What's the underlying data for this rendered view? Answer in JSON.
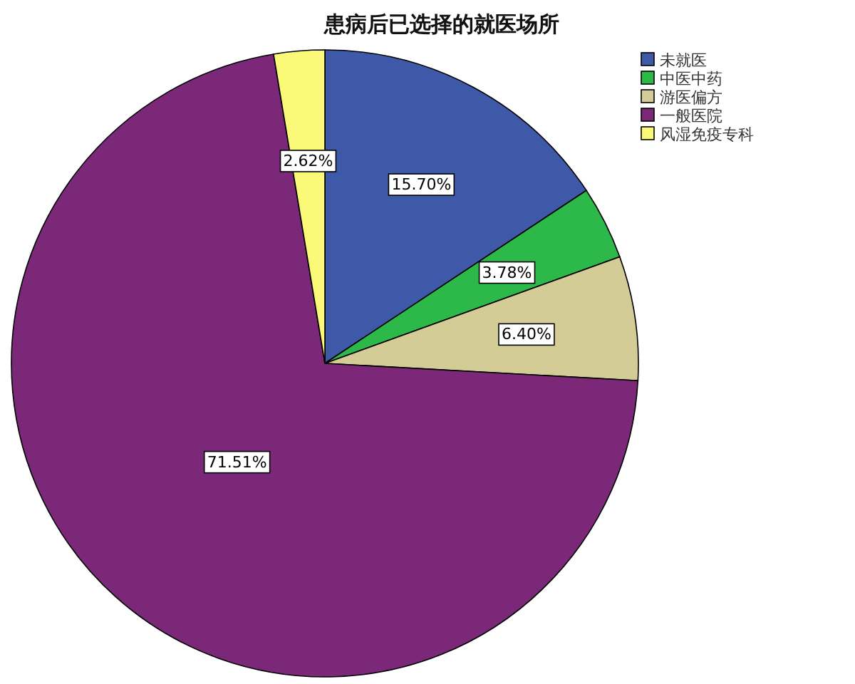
{
  "chart_data": {
    "type": "pie",
    "title": "患病后已选择的就医场所",
    "categories": [
      "未就医",
      "中医中药",
      "游医偏方",
      "一般医院",
      "风湿免疫专科"
    ],
    "values": [
      15.7,
      3.78,
      6.4,
      71.51,
      2.62
    ],
    "value_labels": [
      "15.70%",
      "3.78%",
      "6.40%",
      "71.51%",
      "2.62%"
    ],
    "colors": [
      "#3e59a8",
      "#2db84a",
      "#d4cc96",
      "#7b2878",
      "#fafa78"
    ],
    "legend": "top right"
  }
}
